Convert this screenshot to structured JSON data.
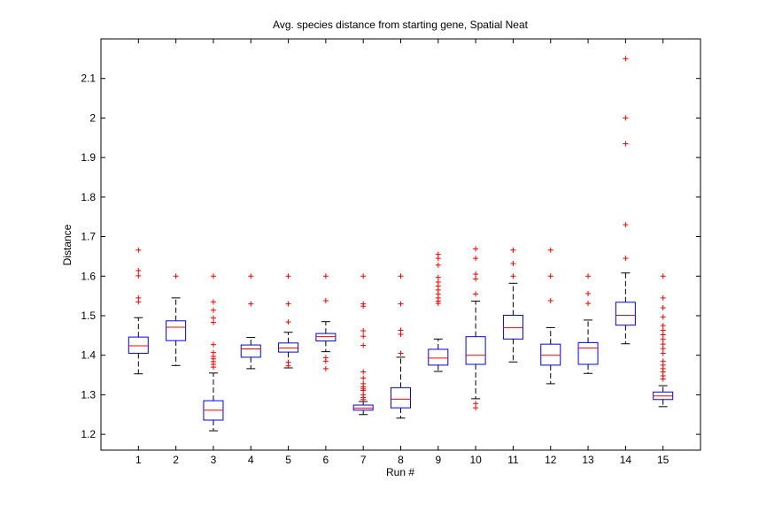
{
  "chart_data": {
    "type": "boxplot",
    "title": "Avg. species distance from starting gene, Spatial Neat",
    "xlabel": "Run #",
    "ylabel": "Distance",
    "ylim": [
      1.16,
      2.2
    ],
    "yticks": [
      1.2,
      1.3,
      1.4,
      1.5,
      1.6,
      1.7,
      1.8,
      1.9,
      2,
      2.1
    ],
    "ytick_labels": [
      "1.2",
      "1.3",
      "1.4",
      "1.5",
      "1.6",
      "1.7",
      "1.8",
      "1.9",
      "2",
      "2.1"
    ],
    "categories": [
      "1",
      "2",
      "3",
      "4",
      "5",
      "6",
      "7",
      "8",
      "9",
      "10",
      "11",
      "12",
      "13",
      "14",
      "15"
    ],
    "colors": {
      "box": "#0000ff",
      "median": "#ff0000",
      "whisker": "#000000",
      "outlier": "#ff0000"
    },
    "boxes": [
      {
        "whisker_low": 1.353,
        "q1": 1.405,
        "median": 1.424,
        "q3": 1.446,
        "whisker_high": 1.495,
        "outliers": [
          1.535,
          1.545,
          1.601,
          1.614,
          1.666
        ]
      },
      {
        "whisker_low": 1.374,
        "q1": 1.437,
        "median": 1.471,
        "q3": 1.487,
        "whisker_high": 1.545,
        "outliers": [
          1.6
        ]
      },
      {
        "whisker_low": 1.209,
        "q1": 1.236,
        "median": 1.261,
        "q3": 1.285,
        "whisker_high": 1.355,
        "outliers": [
          1.37,
          1.377,
          1.384,
          1.391,
          1.397,
          1.407,
          1.427,
          1.483,
          1.494,
          1.514,
          1.535,
          1.6
        ]
      },
      {
        "whisker_low": 1.366,
        "q1": 1.395,
        "median": 1.416,
        "q3": 1.426,
        "whisker_high": 1.445,
        "outliers": [
          1.53,
          1.6
        ]
      },
      {
        "whisker_low": 1.368,
        "q1": 1.408,
        "median": 1.418,
        "q3": 1.431,
        "whisker_high": 1.458,
        "outliers": [
          1.373,
          1.382,
          1.484,
          1.53,
          1.6
        ]
      },
      {
        "whisker_low": 1.409,
        "q1": 1.436,
        "median": 1.447,
        "q3": 1.455,
        "whisker_high": 1.485,
        "outliers": [
          1.366,
          1.385,
          1.394,
          1.538,
          1.6
        ]
      },
      {
        "whisker_low": 1.25,
        "q1": 1.261,
        "median": 1.266,
        "q3": 1.274,
        "whisker_high": 1.283,
        "outliers": [
          1.288,
          1.293,
          1.3,
          1.311,
          1.315,
          1.32,
          1.328,
          1.342,
          1.358,
          1.425,
          1.448,
          1.462,
          1.524,
          1.53,
          1.6
        ]
      },
      {
        "whisker_low": 1.241,
        "q1": 1.267,
        "median": 1.289,
        "q3": 1.318,
        "whisker_high": 1.395,
        "outliers": [
          1.405,
          1.453,
          1.463,
          1.53,
          1.6
        ]
      },
      {
        "whisker_low": 1.359,
        "q1": 1.375,
        "median": 1.393,
        "q3": 1.415,
        "whisker_high": 1.441,
        "outliers": [
          1.531,
          1.537,
          1.545,
          1.555,
          1.565,
          1.575,
          1.585,
          1.597,
          1.628,
          1.645,
          1.655
        ]
      },
      {
        "whisker_low": 1.29,
        "q1": 1.377,
        "median": 1.4,
        "q3": 1.447,
        "whisker_high": 1.537,
        "outliers": [
          1.267,
          1.278,
          1.555,
          1.593,
          1.605,
          1.645,
          1.669
        ]
      },
      {
        "whisker_low": 1.383,
        "q1": 1.441,
        "median": 1.47,
        "q3": 1.501,
        "whisker_high": 1.582,
        "outliers": [
          1.6,
          1.632,
          1.666
        ]
      },
      {
        "whisker_low": 1.328,
        "q1": 1.375,
        "median": 1.4,
        "q3": 1.428,
        "whisker_high": 1.47,
        "outliers": [
          1.538,
          1.6,
          1.666
        ]
      },
      {
        "whisker_low": 1.354,
        "q1": 1.377,
        "median": 1.418,
        "q3": 1.432,
        "whisker_high": 1.489,
        "outliers": [
          1.531,
          1.556,
          1.6
        ]
      },
      {
        "whisker_low": 1.429,
        "q1": 1.476,
        "median": 1.501,
        "q3": 1.534,
        "whisker_high": 1.608,
        "outliers": [
          1.645,
          1.73,
          1.935,
          2.0,
          2.15
        ]
      },
      {
        "whisker_low": 1.27,
        "q1": 1.288,
        "median": 1.297,
        "q3": 1.307,
        "whisker_high": 1.323,
        "outliers": [
          1.34,
          1.348,
          1.358,
          1.366,
          1.375,
          1.385,
          1.405,
          1.417,
          1.428,
          1.44,
          1.452,
          1.463,
          1.475,
          1.497,
          1.52,
          1.545,
          1.6
        ]
      }
    ]
  }
}
